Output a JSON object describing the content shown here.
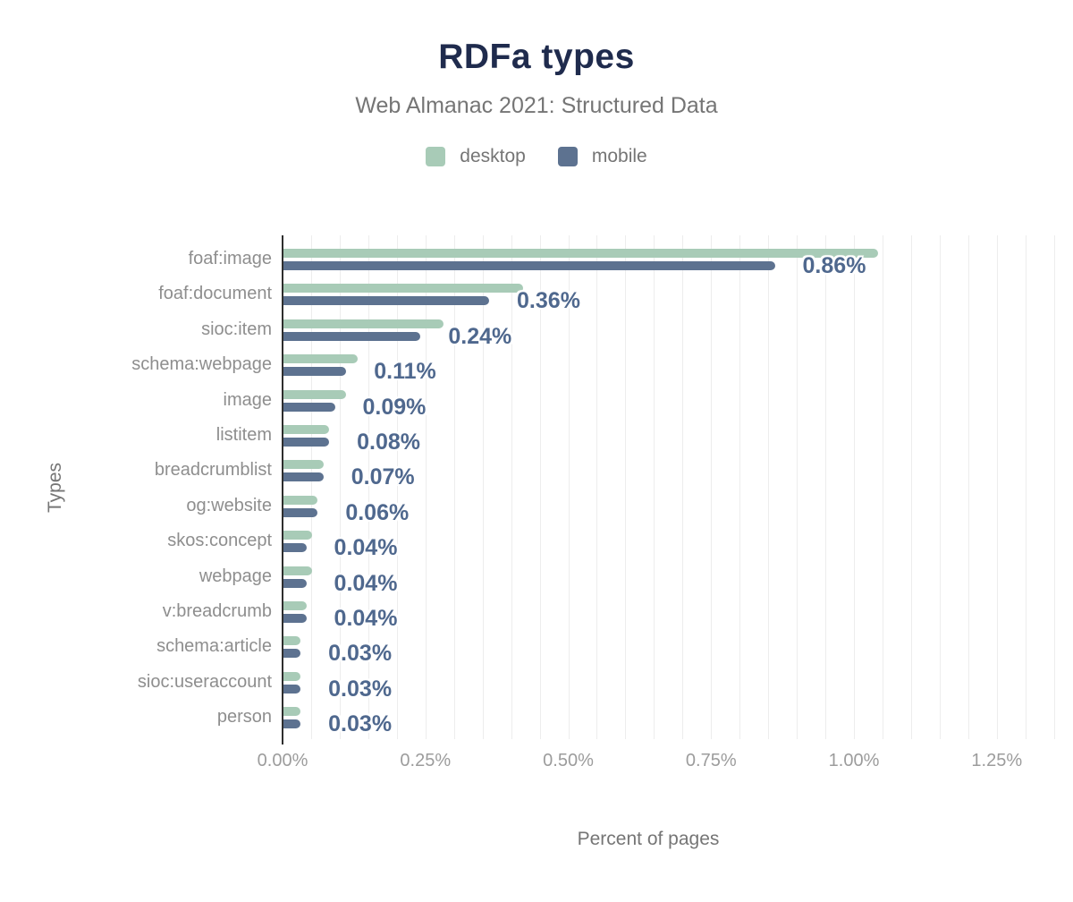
{
  "chart_data": {
    "type": "bar",
    "orientation": "horizontal",
    "title": "RDFa types",
    "subtitle": "Web Almanac 2021: Structured Data",
    "xlabel": "Percent of pages",
    "ylabel": "Types",
    "categories": [
      "foaf:image",
      "foaf:document",
      "sioc:item",
      "schema:webpage",
      "image",
      "listitem",
      "breadcrumblist",
      "og:website",
      "skos:concept",
      "webpage",
      "v:breadcrumb",
      "schema:article",
      "sioc:useraccount",
      "person"
    ],
    "series": [
      {
        "name": "desktop",
        "color": "#a8cbb7",
        "values": [
          1.04,
          0.42,
          0.28,
          0.13,
          0.11,
          0.08,
          0.07,
          0.06,
          0.05,
          0.05,
          0.04,
          0.03,
          0.03,
          0.03
        ]
      },
      {
        "name": "mobile",
        "color": "#5d7290",
        "values": [
          0.86,
          0.36,
          0.24,
          0.11,
          0.09,
          0.08,
          0.07,
          0.06,
          0.04,
          0.04,
          0.04,
          0.03,
          0.03,
          0.03
        ]
      }
    ],
    "data_labels": [
      "0.86%",
      "0.36%",
      "0.24%",
      "0.11%",
      "0.09%",
      "0.08%",
      "0.07%",
      "0.06%",
      "0.04%",
      "0.04%",
      "0.04%",
      "0.03%",
      "0.03%",
      "0.03%"
    ],
    "x_ticks": [
      {
        "value": 0.0,
        "label": "0.00%"
      },
      {
        "value": 0.25,
        "label": "0.25%"
      },
      {
        "value": 0.5,
        "label": "0.50%"
      },
      {
        "value": 0.75,
        "label": "0.75%"
      },
      {
        "value": 1.0,
        "label": "1.00%"
      },
      {
        "value": 1.25,
        "label": "1.25%"
      }
    ],
    "xlim": [
      0,
      1.37
    ],
    "grid": {
      "vertical_minor_step": 0.05,
      "on": true
    },
    "legend_position": "top",
    "colors": {
      "title": "#1f2b4d",
      "subtitle": "#757575",
      "legend_text": "#757575",
      "category_label": "#8e8e8e",
      "tick_label": "#9c9c9c",
      "data_label": "#4f688e",
      "axis_line": "#2e2e2e",
      "gridline": "#ededed",
      "background": "#ffffff"
    }
  }
}
